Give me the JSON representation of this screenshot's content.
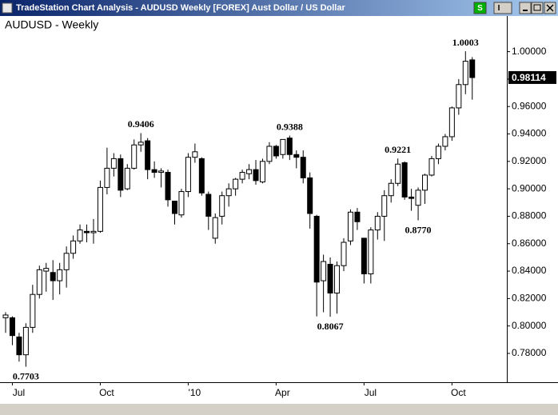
{
  "window_title": "TradeStation Chart Analysis - AUDUSD Weekly [FOREX] Aust Dollar / US Dollar",
  "window_buttons": {
    "s": "S",
    "i": "I"
  },
  "chart_data": {
    "type": "candlestick",
    "title": "AUDUSD - Weekly",
    "categories": [
      null,
      "Jul",
      null,
      null,
      null,
      null,
      null,
      null,
      null,
      null,
      null,
      null,
      null,
      null,
      "Oct",
      null,
      null,
      null,
      null,
      null,
      null,
      null,
      null,
      null,
      null,
      null,
      null,
      "'10",
      null,
      null,
      null,
      null,
      null,
      null,
      null,
      null,
      null,
      null,
      null,
      null,
      "Apr",
      null,
      null,
      null,
      null,
      null,
      null,
      null,
      null,
      null,
      null,
      null,
      null,
      "Jul",
      null,
      null,
      null,
      null,
      null,
      null,
      null,
      null,
      null,
      null,
      null,
      null,
      "Oct",
      null,
      null,
      null
    ],
    "open": [
      0.806,
      0.806,
      0.792,
      0.779,
      0.799,
      0.823,
      0.84,
      0.839,
      0.833,
      0.841,
      0.853,
      0.862,
      0.869,
      0.868,
      0.869,
      0.901,
      0.915,
      0.922,
      0.9,
      0.915,
      0.932,
      0.935,
      0.914,
      0.912,
      0.912,
      0.891,
      0.881,
      0.898,
      0.923,
      0.922,
      0.896,
      0.864,
      0.88,
      0.895,
      0.9,
      0.907,
      0.911,
      0.914,
      0.905,
      0.92,
      0.931,
      0.925,
      0.937,
      0.925,
      0.923,
      0.908,
      0.88,
      0.833,
      0.845,
      0.824,
      0.844,
      0.862,
      0.883,
      0.864,
      0.838,
      0.87,
      0.88,
      0.895,
      0.904,
      0.919,
      0.894,
      0.888,
      0.899,
      0.91,
      0.922,
      0.931,
      0.938,
      0.959,
      0.976,
      0.994
    ],
    "high": [
      0.81,
      0.807,
      0.795,
      0.802,
      0.83,
      0.844,
      0.846,
      0.848,
      0.846,
      0.858,
      0.866,
      0.874,
      0.874,
      0.878,
      0.906,
      0.93,
      0.926,
      0.925,
      0.918,
      0.936,
      0.9406,
      0.937,
      0.92,
      0.915,
      0.914,
      0.891,
      0.9,
      0.926,
      0.933,
      0.923,
      0.898,
      0.882,
      0.898,
      0.904,
      0.908,
      0.914,
      0.918,
      0.921,
      0.922,
      0.934,
      0.932,
      0.936,
      0.9388,
      0.928,
      0.928,
      0.912,
      0.881,
      0.852,
      0.85,
      0.847,
      0.864,
      0.885,
      0.886,
      0.864,
      0.872,
      0.883,
      0.899,
      0.907,
      0.9221,
      0.92,
      0.9,
      0.901,
      0.911,
      0.924,
      0.933,
      0.94,
      0.96,
      0.98,
      1.0003,
      0.996
    ],
    "low": [
      0.795,
      0.786,
      0.774,
      0.7703,
      0.795,
      0.82,
      0.825,
      0.819,
      0.823,
      0.828,
      0.849,
      0.86,
      0.861,
      0.86,
      0.868,
      0.896,
      0.909,
      0.894,
      0.899,
      0.914,
      0.927,
      0.907,
      0.908,
      0.901,
      0.887,
      0.874,
      0.879,
      0.894,
      0.919,
      0.895,
      0.87,
      0.86,
      0.874,
      0.887,
      0.895,
      0.904,
      0.907,
      0.903,
      0.904,
      0.918,
      0.922,
      0.922,
      0.921,
      0.915,
      0.904,
      0.871,
      0.807,
      0.81,
      0.8067,
      0.809,
      0.84,
      0.859,
      0.87,
      0.831,
      0.831,
      0.863,
      0.862,
      0.89,
      0.902,
      0.892,
      0.884,
      0.877,
      0.889,
      0.909,
      0.918,
      0.928,
      0.935,
      0.954,
      0.969,
      0.965
    ],
    "close": [
      0.808,
      0.793,
      0.779,
      0.799,
      0.823,
      0.841,
      0.842,
      0.833,
      0.841,
      0.853,
      0.862,
      0.87,
      0.868,
      0.869,
      0.901,
      0.915,
      0.922,
      0.899,
      0.915,
      0.932,
      0.934,
      0.914,
      0.912,
      0.913,
      0.892,
      0.882,
      0.898,
      0.923,
      0.927,
      0.897,
      0.88,
      0.879,
      0.895,
      0.9,
      0.907,
      0.912,
      0.914,
      0.906,
      0.92,
      0.931,
      0.924,
      0.936,
      0.925,
      0.923,
      0.908,
      0.882,
      0.832,
      0.847,
      0.824,
      0.844,
      0.861,
      0.883,
      0.876,
      0.838,
      0.87,
      0.88,
      0.895,
      0.904,
      0.918,
      0.894,
      0.893,
      0.899,
      0.91,
      0.922,
      0.931,
      0.938,
      0.959,
      0.976,
      0.993,
      0.9811
    ],
    "up_color": "#ffffff",
    "down_color": "#000000",
    "ylim": [
      0.759,
      1.026
    ],
    "yticks": [
      {
        "value": 0.78,
        "label": "0.78000"
      },
      {
        "value": 0.8,
        "label": "0.80000"
      },
      {
        "value": 0.82,
        "label": "0.82000"
      },
      {
        "value": 0.84,
        "label": "0.84000"
      },
      {
        "value": 0.86,
        "label": "0.86000"
      },
      {
        "value": 0.88,
        "label": "0.88000"
      },
      {
        "value": 0.9,
        "label": "0.90000"
      },
      {
        "value": 0.92,
        "label": "0.92000"
      },
      {
        "value": 0.94,
        "label": "0.94000"
      },
      {
        "value": 0.96,
        "label": "0.96000"
      },
      {
        "value": 0.98,
        "label": "0.98000"
      },
      {
        "value": 1.0,
        "label": "1.00000"
      }
    ],
    "last_value": 0.98114,
    "annotations": [
      {
        "value": 0.7703,
        "label": "0.7703"
      },
      {
        "value": 0.9406,
        "label": "0.9406"
      },
      {
        "value": 0.9388,
        "label": "0.9388"
      },
      {
        "value": 0.8067,
        "label": "0.8067"
      },
      {
        "value": 0.9221,
        "label": "0.9221"
      },
      {
        "value": 0.877,
        "label": "0.8770"
      },
      {
        "value": 1.0003,
        "label": "1.0003"
      }
    ]
  }
}
